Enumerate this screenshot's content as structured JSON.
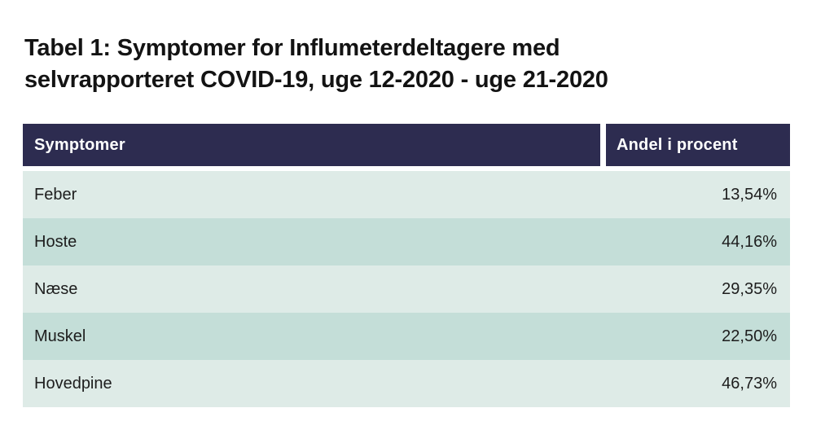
{
  "title": {
    "line1": "Tabel 1: Symptomer for Influmeterdeltagere med",
    "line2": "selvrapporteret COVID-19, uge 12-2020 - uge 21-2020"
  },
  "table": {
    "columns": [
      "Symptomer",
      "Andel i procent"
    ],
    "rows": [
      {
        "symptom": "Feber",
        "value": "13,54%"
      },
      {
        "symptom": "Hoste",
        "value": "44,16%"
      },
      {
        "symptom": "Næse",
        "value": "29,35%"
      },
      {
        "symptom": "Muskel",
        "value": "22,50%"
      },
      {
        "symptom": "Hovedpine",
        "value": "46,73%"
      }
    ]
  },
  "chart_data": {
    "type": "table",
    "title": "Tabel 1: Symptomer for Influmeterdeltagere med selvrapporteret COVID-19, uge 12-2020 - uge 21-2020",
    "columns": [
      "Symptomer",
      "Andel i procent"
    ],
    "categories": [
      "Feber",
      "Hoste",
      "Næse",
      "Muskel",
      "Hovedpine"
    ],
    "values": [
      13.54,
      44.16,
      29.35,
      22.5,
      46.73
    ],
    "value_labels": [
      "13,54%",
      "44,16%",
      "29,35%",
      "22,50%",
      "46,73%"
    ],
    "unit": "percent"
  },
  "colors": {
    "header_bg": "#2d2c50",
    "header_text": "#ffffff",
    "row_light": "#deebe7",
    "row_dark": "#c4ded8",
    "body_text": "#1d1d1d",
    "title_text": "#131313",
    "page_bg": "#ffffff"
  }
}
